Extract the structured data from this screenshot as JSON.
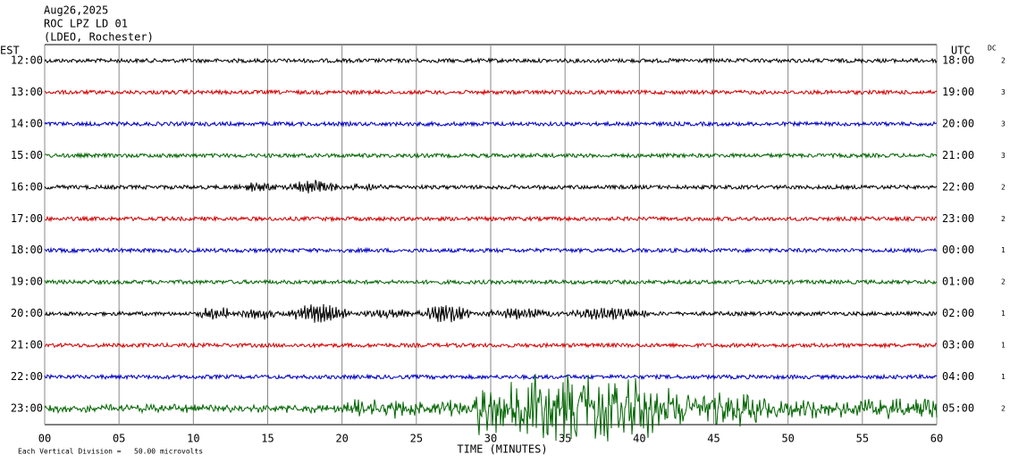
{
  "header": {
    "date": "Aug26,2025",
    "station": "ROC LPZ LD 01",
    "network": "(LDEO, Rochester)"
  },
  "left_axis_title": "EST",
  "right_axis_title": "UTC",
  "dc_title": "DC",
  "rows": [
    {
      "est": "12:00",
      "utc": "18:00",
      "dc": "2"
    },
    {
      "est": "13:00",
      "utc": "19:00",
      "dc": "3"
    },
    {
      "est": "14:00",
      "utc": "20:00",
      "dc": "3"
    },
    {
      "est": "15:00",
      "utc": "21:00",
      "dc": "3"
    },
    {
      "est": "16:00",
      "utc": "22:00",
      "dc": "2"
    },
    {
      "est": "17:00",
      "utc": "23:00",
      "dc": "2"
    },
    {
      "est": "18:00",
      "utc": "00:00",
      "dc": "1"
    },
    {
      "est": "19:00",
      "utc": "01:00",
      "dc": "2"
    },
    {
      "est": "20:00",
      "utc": "02:00",
      "dc": "1"
    },
    {
      "est": "21:00",
      "utc": "03:00",
      "dc": "1"
    },
    {
      "est": "22:00",
      "utc": "04:00",
      "dc": "1"
    },
    {
      "est": "23:00",
      "utc": "05:00",
      "dc": "2"
    }
  ],
  "x_axis": {
    "ticks": [
      "00",
      "05",
      "10",
      "15",
      "20",
      "25",
      "30",
      "35",
      "40",
      "45",
      "50",
      "55",
      "60"
    ],
    "label": "TIME (MINUTES)"
  },
  "footnote": "Each Vertical Division =   50.00 microvolts"
}
